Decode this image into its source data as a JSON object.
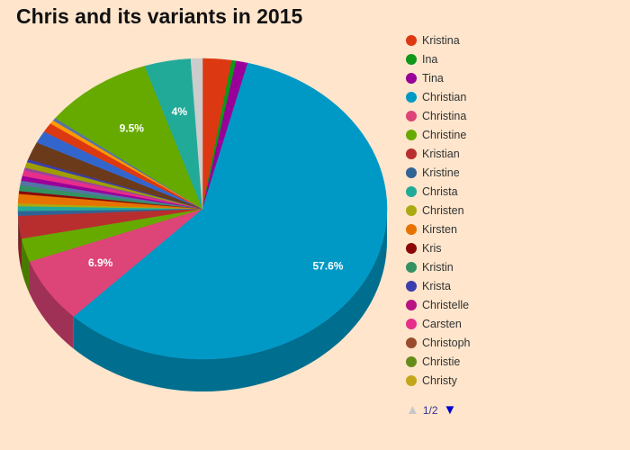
{
  "chart_data": {
    "type": "pie",
    "style": "3d",
    "title": "Chris and its variants in 2015",
    "slices": [
      {
        "name": "Kristina",
        "value": 2.5,
        "color": "#dc3912",
        "label": ""
      },
      {
        "name": "Ina",
        "value": 0.4,
        "color": "#109618",
        "label": ""
      },
      {
        "name": "Tina",
        "value": 1.0,
        "color": "#990099",
        "label": ""
      },
      {
        "name": "Christian",
        "value": 57.6,
        "color": "#0099c6",
        "label": "57.6%"
      },
      {
        "name": "Christina",
        "value": 6.9,
        "color": "#dd4477",
        "label": "6.9%"
      },
      {
        "name": "Christine",
        "value": 2.5,
        "color": "#66aa00",
        "label": ""
      },
      {
        "name": "Kristian",
        "value": 2.4,
        "color": "#b82e2e",
        "label": ""
      },
      {
        "name": "Kristine",
        "value": 0.5,
        "color": "#316395",
        "label": ""
      },
      {
        "name": "Christa",
        "value": 0.5,
        "color": "#22aa99",
        "label": ""
      },
      {
        "name": "Christen",
        "value": 0.3,
        "color": "#aaaa11",
        "label": ""
      },
      {
        "name": "Kirsten",
        "value": 1.0,
        "color": "#e67300",
        "label": ""
      },
      {
        "name": "Kris",
        "value": 0.3,
        "color": "#8b0707",
        "label": ""
      },
      {
        "name": "Kristin",
        "value": 0.6,
        "color": "#329262",
        "label": ""
      },
      {
        "name": "Krista",
        "value": 0.5,
        "color": "#5574a6",
        "label": ""
      },
      {
        "name": "Christelle",
        "value": 0.5,
        "color": "#990099",
        "label": ""
      },
      {
        "name": "Carsten",
        "value": 0.6,
        "color": "#e62e8a",
        "label": ""
      },
      {
        "name": "Christoph",
        "value": 0.3,
        "color": "#994499",
        "label": ""
      },
      {
        "name": "Christie",
        "value": 0.6,
        "color": "#9e9e00",
        "label": ""
      },
      {
        "name": "Christy",
        "value": 0.3,
        "color": "#3b3eac",
        "label": ""
      },
      {
        "name": "",
        "value": 1.9,
        "color": "#6b3a1a",
        "label": ""
      },
      {
        "name": "",
        "value": 1.3,
        "color": "#3366cc",
        "label": ""
      },
      {
        "name": "",
        "value": 1.0,
        "color": "#dc3912",
        "label": ""
      },
      {
        "name": "",
        "value": 0.4,
        "color": "#ff9900",
        "label": ""
      },
      {
        "name": "",
        "value": 0.3,
        "color": "#5574a6",
        "label": ""
      },
      {
        "name": "",
        "value": 9.5,
        "color": "#66aa00",
        "label": "9.5%"
      },
      {
        "name": "",
        "value": 4.0,
        "color": "#22aa99",
        "label": "4%"
      },
      {
        "name": "",
        "value": 1.0,
        "color": "#cccccc",
        "label": ""
      }
    ],
    "legend": {
      "placement": "right",
      "items": [
        {
          "name": "Kristina",
          "color": "#dc3912"
        },
        {
          "name": "Ina",
          "color": "#109618"
        },
        {
          "name": "Tina",
          "color": "#990099"
        },
        {
          "name": "Christian",
          "color": "#0099c6"
        },
        {
          "name": "Christina",
          "color": "#dd4477"
        },
        {
          "name": "Christine",
          "color": "#66aa00"
        },
        {
          "name": "Kristian",
          "color": "#b82e2e"
        },
        {
          "name": "Kristine",
          "color": "#316395"
        },
        {
          "name": "Christa",
          "color": "#22aa99"
        },
        {
          "name": "Christen",
          "color": "#aaaa11"
        },
        {
          "name": "Kirsten",
          "color": "#e67300"
        },
        {
          "name": "Kris",
          "color": "#8b0707"
        },
        {
          "name": "Kristin",
          "color": "#329262"
        },
        {
          "name": "Krista",
          "color": "#3b3eac"
        },
        {
          "name": "Christelle",
          "color": "#b91383"
        },
        {
          "name": "Carsten",
          "color": "#e62e8a"
        },
        {
          "name": "Christoph",
          "color": "#994c2e"
        },
        {
          "name": "Christie",
          "color": "#668d1c"
        },
        {
          "name": "Christy",
          "color": "#c4a718"
        }
      ],
      "page_indicator": "1/2"
    }
  },
  "colors": {
    "background": "#fee5cc",
    "nav_active": "#0000cc",
    "nav_disabled": "#c8c8c8"
  }
}
